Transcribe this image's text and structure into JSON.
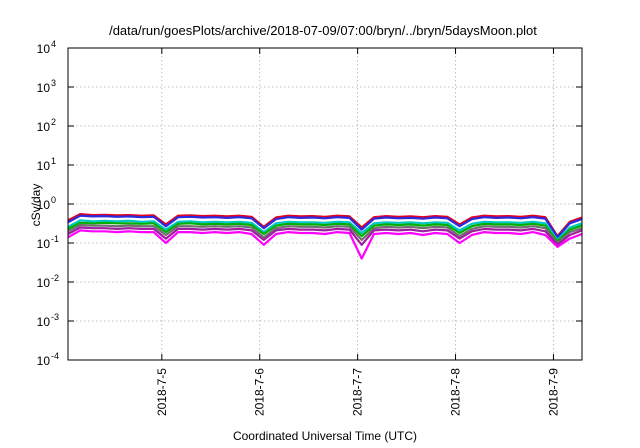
{
  "chart_data": {
    "type": "line",
    "title": "/data/run/goesPlots/archive/2018-07-09/07:00/bryn/../bryn/5daysMoon.plot",
    "xlabel": "Coordinated Universal Time (UTC)",
    "ylabel": "cSv/day",
    "yscale": "log",
    "ylim": [
      0.0001,
      10000
    ],
    "y_ticks": [
      {
        "value": 0.0001,
        "base": "10",
        "exp": "-4"
      },
      {
        "value": 0.001,
        "base": "10",
        "exp": "-3"
      },
      {
        "value": 0.01,
        "base": "10",
        "exp": "-2"
      },
      {
        "value": 0.1,
        "base": "10",
        "exp": "-1"
      },
      {
        "value": 1,
        "base": "10",
        "exp": "0"
      },
      {
        "value": 10,
        "base": "10",
        "exp": "1"
      },
      {
        "value": 100,
        "base": "10",
        "exp": "2"
      },
      {
        "value": 1000,
        "base": "10",
        "exp": "3"
      },
      {
        "value": 10000,
        "base": "10",
        "exp": "4"
      }
    ],
    "xlim": [
      "2018-07-04 01:00",
      "2018-07-09 07:00"
    ],
    "x_ticks": [
      {
        "date": "2018-07-05 00:00",
        "label": "2018-7-5"
      },
      {
        "date": "2018-07-06 00:00",
        "label": "2018-7-6"
      },
      {
        "date": "2018-07-07 00:00",
        "label": "2018-7-7"
      },
      {
        "date": "2018-07-08 00:00",
        "label": "2018-7-8"
      },
      {
        "date": "2018-07-09 00:00",
        "label": "2018-7-9"
      }
    ],
    "grid": true,
    "legend": "none",
    "x": [
      "2018-07-04 01:00",
      "2018-07-04 04:00",
      "2018-07-04 07:00",
      "2018-07-04 10:00",
      "2018-07-04 13:00",
      "2018-07-04 16:00",
      "2018-07-04 19:00",
      "2018-07-04 22:00",
      "2018-07-05 01:00",
      "2018-07-05 04:00",
      "2018-07-05 07:00",
      "2018-07-05 10:00",
      "2018-07-05 13:00",
      "2018-07-05 16:00",
      "2018-07-05 19:00",
      "2018-07-05 22:00",
      "2018-07-06 01:00",
      "2018-07-06 04:00",
      "2018-07-06 07:00",
      "2018-07-06 10:00",
      "2018-07-06 13:00",
      "2018-07-06 16:00",
      "2018-07-06 19:00",
      "2018-07-06 22:00",
      "2018-07-07 01:00",
      "2018-07-07 04:00",
      "2018-07-07 07:00",
      "2018-07-07 10:00",
      "2018-07-07 13:00",
      "2018-07-07 16:00",
      "2018-07-07 19:00",
      "2018-07-07 22:00",
      "2018-07-08 01:00",
      "2018-07-08 04:00",
      "2018-07-08 07:00",
      "2018-07-08 10:00",
      "2018-07-08 13:00",
      "2018-07-08 16:00",
      "2018-07-08 19:00",
      "2018-07-08 22:00",
      "2018-07-09 01:00",
      "2018-07-09 04:00",
      "2018-07-09 07:00"
    ],
    "series": [
      {
        "color": "#e4001c",
        "values": [
          0.38,
          0.55,
          0.52,
          0.53,
          0.51,
          0.52,
          0.5,
          0.51,
          0.3,
          0.5,
          0.51,
          0.49,
          0.5,
          0.48,
          0.5,
          0.47,
          0.26,
          0.45,
          0.5,
          0.48,
          0.49,
          0.47,
          0.5,
          0.48,
          0.25,
          0.46,
          0.49,
          0.47,
          0.48,
          0.46,
          0.49,
          0.47,
          0.3,
          0.45,
          0.5,
          0.48,
          0.49,
          0.47,
          0.5,
          0.46,
          0.15,
          0.35,
          0.45
        ]
      },
      {
        "color": "#2a2ae0",
        "values": [
          0.34,
          0.5,
          0.48,
          0.49,
          0.47,
          0.48,
          0.46,
          0.47,
          0.27,
          0.46,
          0.47,
          0.45,
          0.46,
          0.44,
          0.46,
          0.43,
          0.24,
          0.41,
          0.46,
          0.44,
          0.45,
          0.43,
          0.46,
          0.44,
          0.22,
          0.42,
          0.45,
          0.43,
          0.44,
          0.42,
          0.45,
          0.43,
          0.27,
          0.41,
          0.46,
          0.44,
          0.45,
          0.43,
          0.46,
          0.42,
          0.14,
          0.32,
          0.41
        ]
      },
      {
        "color": "#00c8c8",
        "values": [
          0.26,
          0.38,
          0.36,
          0.37,
          0.36,
          0.37,
          0.35,
          0.36,
          0.22,
          0.35,
          0.36,
          0.34,
          0.35,
          0.34,
          0.35,
          0.33,
          0.19,
          0.32,
          0.35,
          0.34,
          0.34,
          0.33,
          0.35,
          0.34,
          0.18,
          0.32,
          0.34,
          0.33,
          0.34,
          0.32,
          0.34,
          0.33,
          0.21,
          0.31,
          0.35,
          0.34,
          0.34,
          0.33,
          0.35,
          0.32,
          0.12,
          0.25,
          0.32
        ]
      },
      {
        "color": "#00b000",
        "values": [
          0.23,
          0.33,
          0.32,
          0.33,
          0.32,
          0.32,
          0.31,
          0.32,
          0.19,
          0.31,
          0.32,
          0.3,
          0.31,
          0.3,
          0.31,
          0.29,
          0.17,
          0.28,
          0.31,
          0.3,
          0.3,
          0.29,
          0.31,
          0.3,
          0.15,
          0.28,
          0.3,
          0.29,
          0.3,
          0.28,
          0.3,
          0.29,
          0.18,
          0.27,
          0.31,
          0.3,
          0.3,
          0.29,
          0.31,
          0.28,
          0.11,
          0.22,
          0.28
        ]
      },
      {
        "color": "#707070",
        "values": [
          0.2,
          0.29,
          0.28,
          0.28,
          0.27,
          0.28,
          0.27,
          0.27,
          0.16,
          0.27,
          0.27,
          0.26,
          0.27,
          0.26,
          0.27,
          0.25,
          0.14,
          0.24,
          0.27,
          0.26,
          0.26,
          0.25,
          0.27,
          0.26,
          0.12,
          0.24,
          0.26,
          0.25,
          0.26,
          0.24,
          0.26,
          0.25,
          0.15,
          0.23,
          0.27,
          0.26,
          0.26,
          0.25,
          0.27,
          0.24,
          0.1,
          0.19,
          0.24
        ]
      },
      {
        "color": "#9e1fa0",
        "values": [
          0.17,
          0.25,
          0.24,
          0.24,
          0.23,
          0.24,
          0.23,
          0.23,
          0.13,
          0.23,
          0.23,
          0.22,
          0.23,
          0.22,
          0.23,
          0.21,
          0.12,
          0.21,
          0.23,
          0.22,
          0.22,
          0.21,
          0.23,
          0.22,
          0.09,
          0.21,
          0.22,
          0.21,
          0.22,
          0.2,
          0.22,
          0.21,
          0.13,
          0.2,
          0.23,
          0.22,
          0.22,
          0.21,
          0.23,
          0.2,
          0.09,
          0.16,
          0.21
        ]
      },
      {
        "color": "#ff00ff",
        "values": [
          0.14,
          0.21,
          0.2,
          0.2,
          0.19,
          0.2,
          0.19,
          0.19,
          0.1,
          0.19,
          0.19,
          0.18,
          0.19,
          0.18,
          0.19,
          0.17,
          0.09,
          0.17,
          0.19,
          0.18,
          0.18,
          0.17,
          0.19,
          0.18,
          0.04,
          0.17,
          0.18,
          0.17,
          0.18,
          0.16,
          0.18,
          0.17,
          0.1,
          0.16,
          0.19,
          0.18,
          0.18,
          0.17,
          0.19,
          0.16,
          0.08,
          0.13,
          0.17
        ]
      }
    ]
  }
}
